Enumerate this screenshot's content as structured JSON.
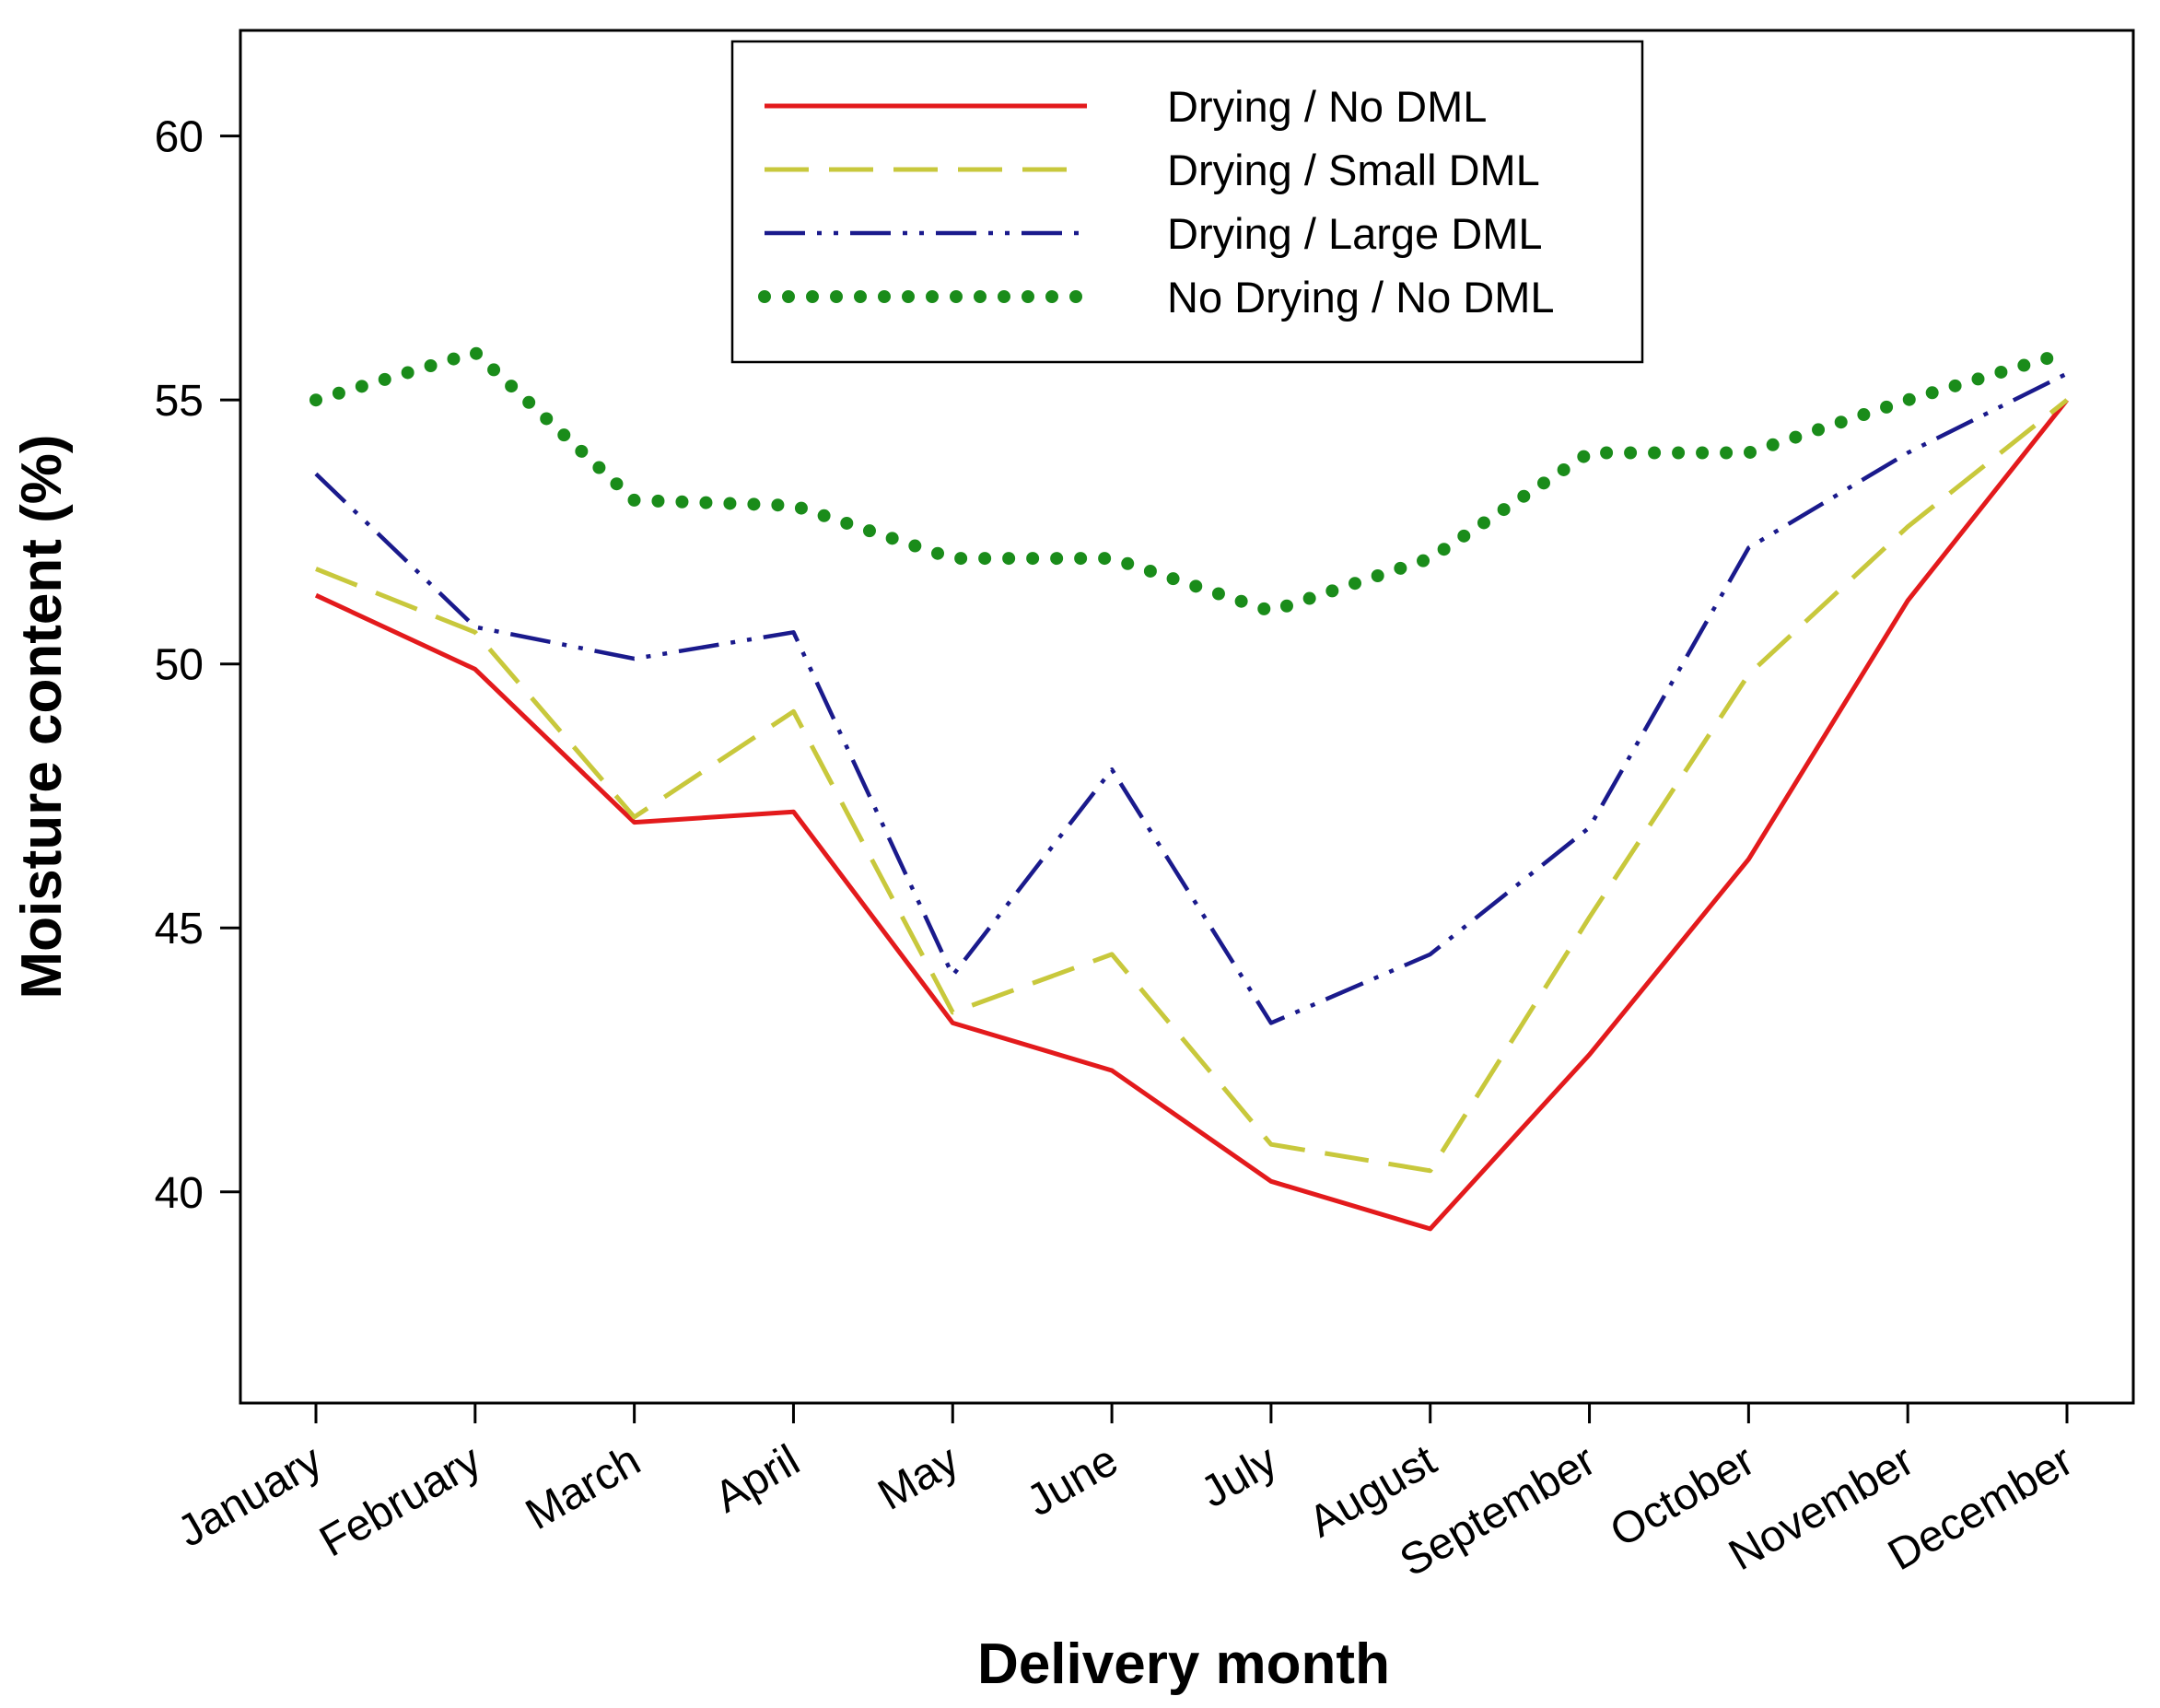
{
  "chart_data": {
    "type": "line",
    "xlabel": "Delivery month",
    "ylabel": "Moisture content (%)",
    "ylim": [
      36,
      62
    ],
    "yticks": [
      40,
      45,
      50,
      55,
      60
    ],
    "legend_position": "top-center",
    "grid": false,
    "categories": [
      "January",
      "February",
      "March",
      "April",
      "May",
      "June",
      "July",
      "August",
      "September",
      "October",
      "November",
      "December"
    ],
    "series": [
      {
        "name": "Drying / No DML",
        "color": "#e31a1c",
        "style": "solid",
        "values": [
          51.3,
          49.9,
          47.0,
          47.2,
          43.2,
          42.3,
          40.2,
          39.3,
          42.6,
          46.3,
          51.2,
          55.0
        ]
      },
      {
        "name": "Drying / Small DML",
        "color": "#c8c83c",
        "style": "dashed",
        "values": [
          51.8,
          50.6,
          47.1,
          49.1,
          43.4,
          44.5,
          40.9,
          40.4,
          45.2,
          49.8,
          52.6,
          55.0
        ]
      },
      {
        "name": "Drying / Large DML",
        "color": "#1a1a8c",
        "style": "dash-dot-dot",
        "values": [
          53.6,
          50.7,
          50.1,
          50.6,
          44.1,
          48.0,
          43.2,
          44.5,
          46.9,
          52.2,
          54.0,
          55.5
        ]
      },
      {
        "name": "No Drying / No DML",
        "color": "#1a8c1a",
        "style": "dotted",
        "values": [
          55.0,
          55.9,
          53.1,
          53.0,
          52.0,
          52.0,
          51.0,
          52.0,
          54.0,
          54.0,
          55.0,
          55.9
        ]
      }
    ]
  }
}
